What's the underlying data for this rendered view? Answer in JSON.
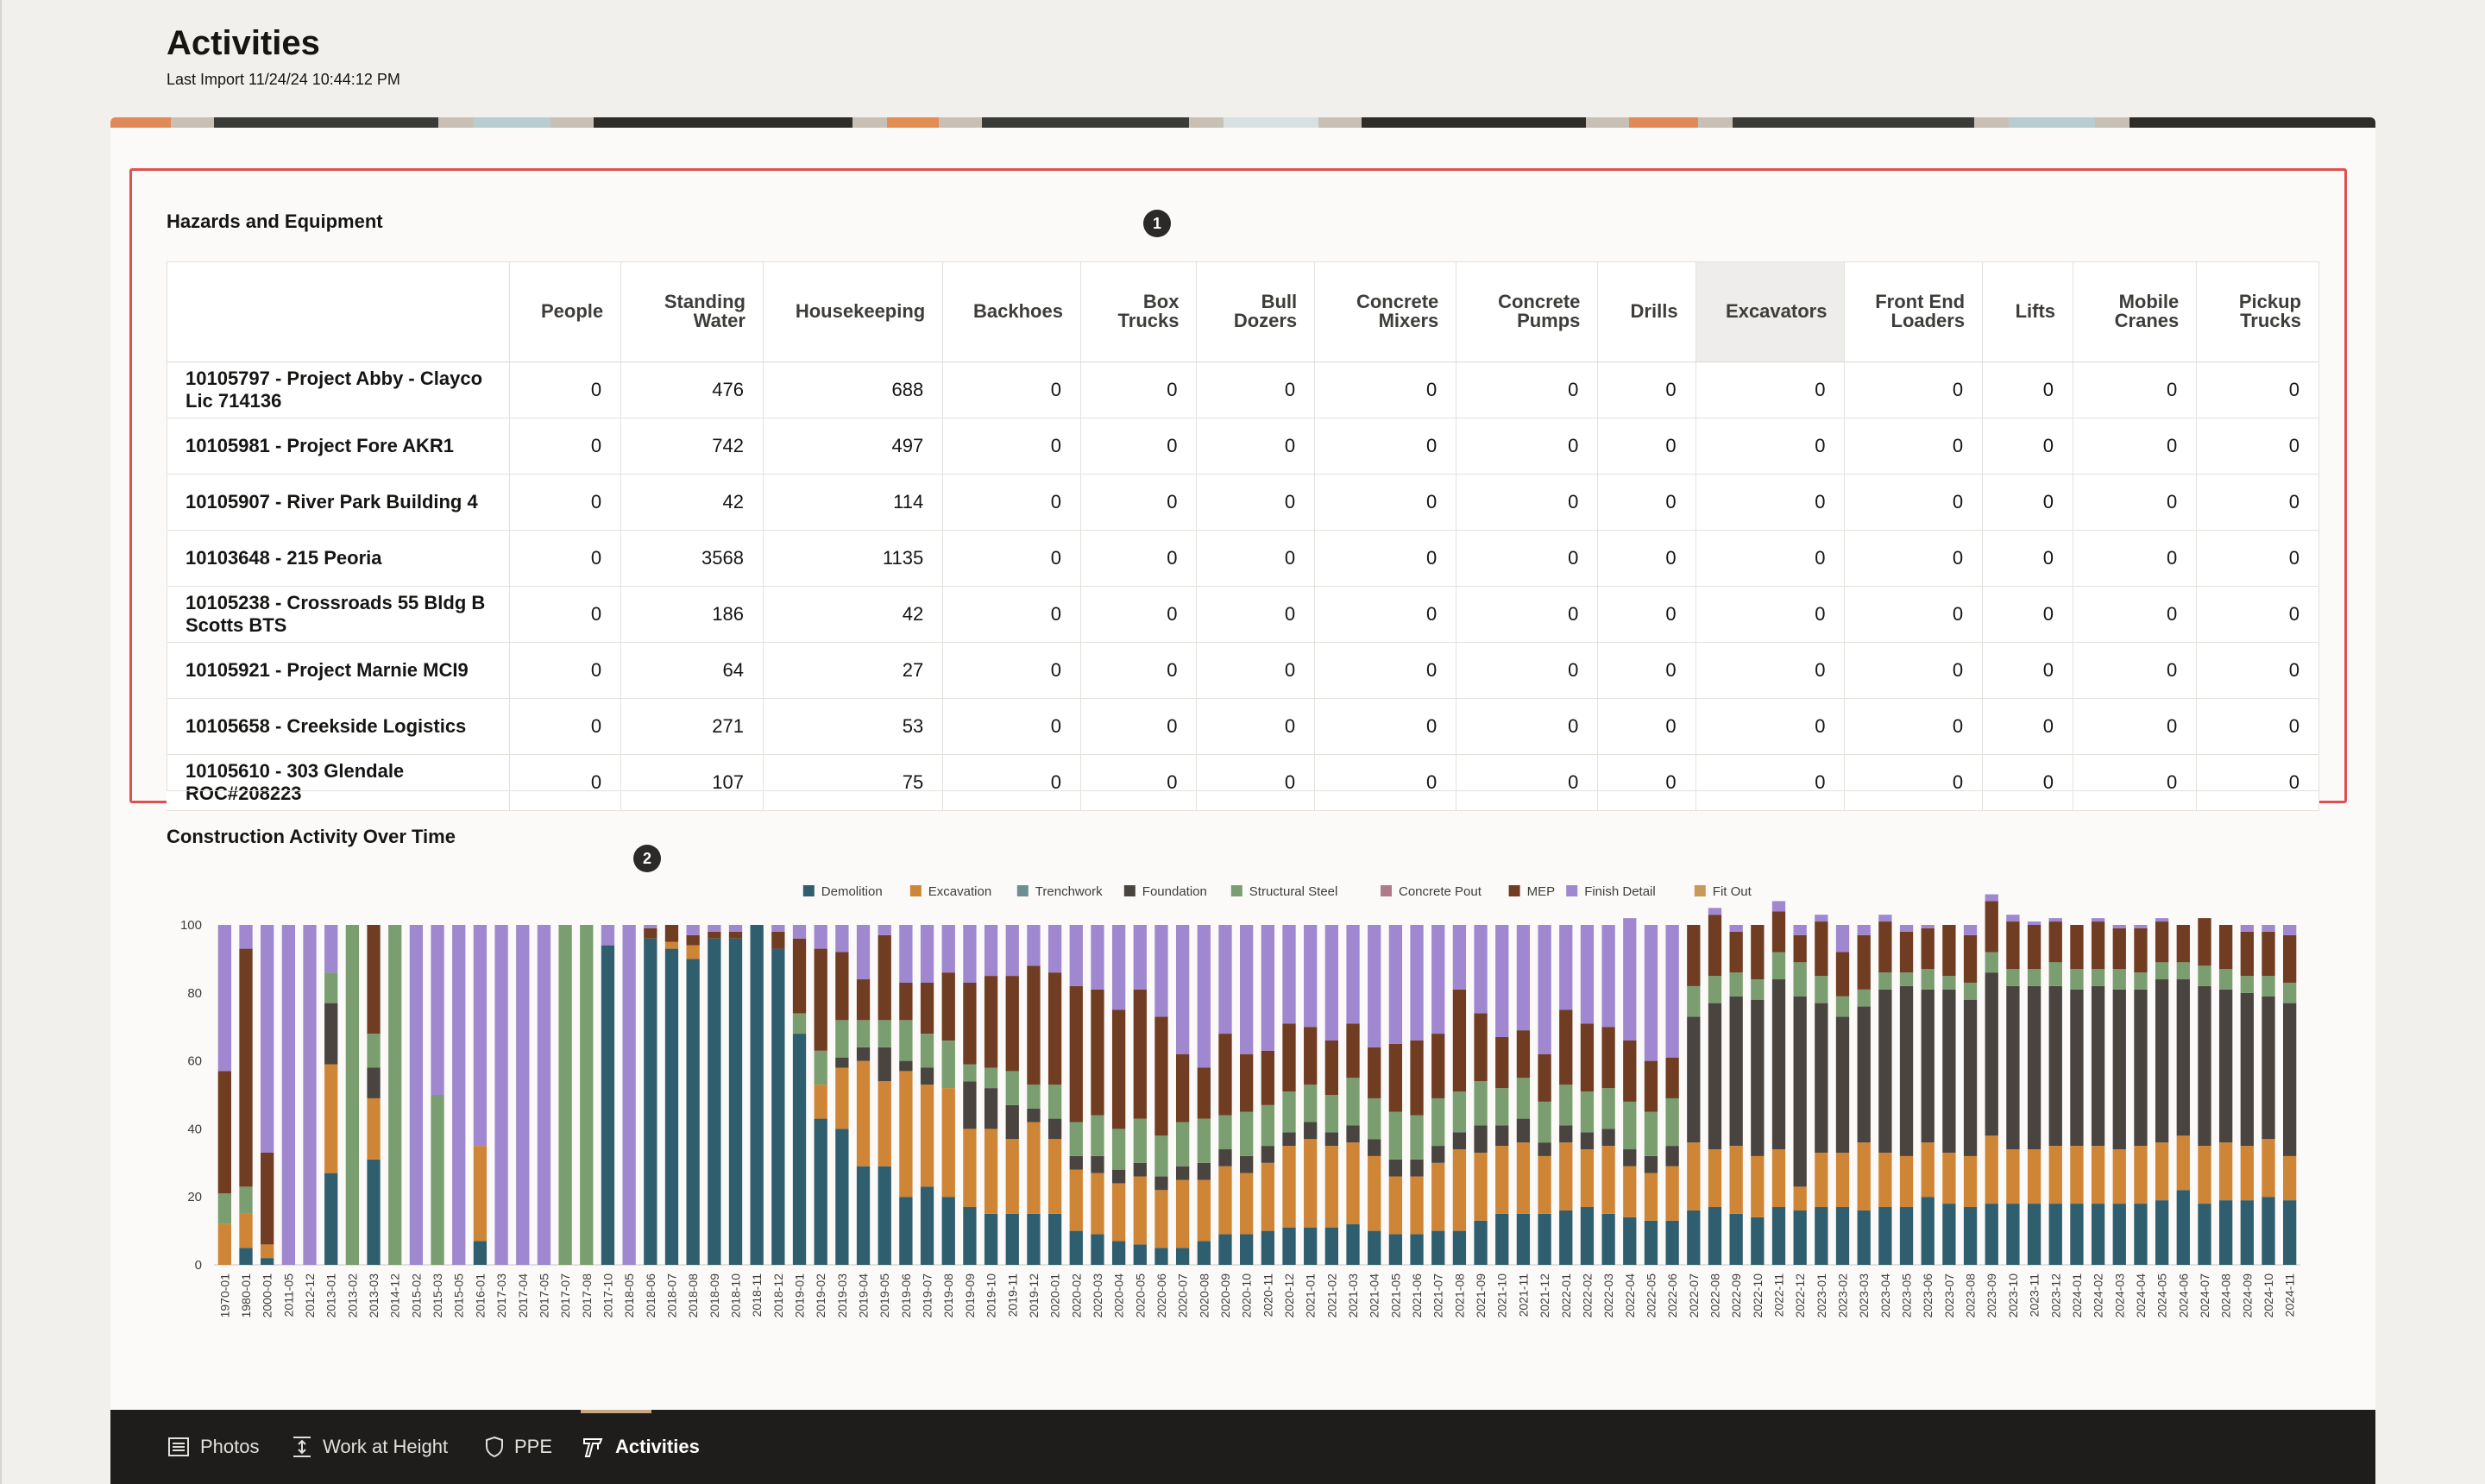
{
  "page": {
    "title": "Activities",
    "last_import": "Last Import 11/24/24 10:44:12 PM"
  },
  "hazards": {
    "title": "Hazards and Equipment",
    "callout": "1",
    "columns": [
      "People",
      "Standing Water",
      "Housekeeping",
      "Backhoes",
      "Box Trucks",
      "Bull Dozers",
      "Concrete Mixers",
      "Concrete Pumps",
      "Drills",
      "Excavators",
      "Front End Loaders",
      "Lifts",
      "Mobile Cranes",
      "Pickup Trucks"
    ],
    "rows": [
      {
        "project": "10105797 - Project Abby - Clayco Lic 714136",
        "values": [
          0,
          476,
          688,
          0,
          0,
          0,
          0,
          0,
          0,
          0,
          0,
          0,
          0,
          0
        ]
      },
      {
        "project": "10105981 - Project Fore AKR1",
        "values": [
          0,
          742,
          497,
          0,
          0,
          0,
          0,
          0,
          0,
          0,
          0,
          0,
          0,
          0
        ]
      },
      {
        "project": "10105907 - River Park Building 4",
        "values": [
          0,
          42,
          114,
          0,
          0,
          0,
          0,
          0,
          0,
          0,
          0,
          0,
          0,
          0
        ]
      },
      {
        "project": "10103648 - 215 Peoria",
        "values": [
          0,
          3568,
          1135,
          0,
          0,
          0,
          0,
          0,
          0,
          0,
          0,
          0,
          0,
          0
        ]
      },
      {
        "project": "10105238 - Crossroads 55 Bldg B Scotts BTS",
        "values": [
          0,
          186,
          42,
          0,
          0,
          0,
          0,
          0,
          0,
          0,
          0,
          0,
          0,
          0
        ]
      },
      {
        "project": "10105921 - Project Marnie MCI9",
        "values": [
          0,
          64,
          27,
          0,
          0,
          0,
          0,
          0,
          0,
          0,
          0,
          0,
          0,
          0
        ]
      },
      {
        "project": "10105658 - Creekside Logistics",
        "values": [
          0,
          271,
          53,
          0,
          0,
          0,
          0,
          0,
          0,
          0,
          0,
          0,
          0,
          0
        ]
      },
      {
        "project": "10105610 - 303 Glendale ROC#208223",
        "values": [
          0,
          107,
          75,
          0,
          0,
          0,
          0,
          0,
          0,
          0,
          0,
          0,
          0,
          0
        ]
      }
    ]
  },
  "activity": {
    "callout": "2"
  },
  "chart_data": {
    "type": "bar",
    "stacked": true,
    "title": "Construction Activity Over Time",
    "xlabel": "",
    "ylabel": "",
    "ylim": [
      0,
      100
    ],
    "yticks": [
      0,
      20,
      40,
      60,
      80,
      100
    ],
    "legend_position": "top",
    "grid": false,
    "categories": [
      "1970-01",
      "1980-01",
      "2000-01",
      "2011-05",
      "2012-12",
      "2013-01",
      "2013-02",
      "2013-03",
      "2014-12",
      "2015-02",
      "2015-03",
      "2015-05",
      "2016-01",
      "2017-03",
      "2017-04",
      "2017-05",
      "2017-07",
      "2017-08",
      "2017-10",
      "2018-05",
      "2018-06",
      "2018-07",
      "2018-08",
      "2018-09",
      "2018-10",
      "2018-11",
      "2018-12",
      "2019-01",
      "2019-02",
      "2019-03",
      "2019-04",
      "2019-05",
      "2019-06",
      "2019-07",
      "2019-08",
      "2019-09",
      "2019-10",
      "2019-11",
      "2019-12",
      "2020-01",
      "2020-02",
      "2020-03",
      "2020-04",
      "2020-05",
      "2020-06",
      "2020-07",
      "2020-08",
      "2020-09",
      "2020-10",
      "2020-11",
      "2020-12",
      "2021-01",
      "2021-02",
      "2021-03",
      "2021-04",
      "2021-05",
      "2021-06",
      "2021-07",
      "2021-08",
      "2021-09",
      "2021-10",
      "2021-11",
      "2021-12",
      "2022-01",
      "2022-02",
      "2022-03",
      "2022-04",
      "2022-05",
      "2022-06",
      "2022-07",
      "2022-08",
      "2022-09",
      "2022-10",
      "2022-11",
      "2022-12",
      "2023-01",
      "2023-02",
      "2023-03",
      "2023-04",
      "2023-05",
      "2023-06",
      "2023-07",
      "2023-08",
      "2023-09",
      "2023-10",
      "2023-11",
      "2023-12",
      "2024-01",
      "2024-02",
      "2024-03",
      "2024-04",
      "2024-05",
      "2024-06",
      "2024-07",
      "2024-08",
      "2024-09",
      "2024-10",
      "2024-11"
    ],
    "series": [
      {
        "name": "Demolition",
        "color": "#2f5f6e",
        "values": [
          0,
          5,
          2,
          0,
          0,
          27,
          0,
          31,
          0,
          0,
          0,
          0,
          7,
          0,
          0,
          0,
          0,
          0,
          94,
          0,
          96,
          93,
          90,
          96,
          96,
          100,
          93,
          68,
          43,
          40,
          29,
          29,
          20,
          23,
          20,
          17,
          15,
          15,
          15,
          15,
          10,
          9,
          7,
          6,
          5,
          5,
          7,
          9,
          9,
          10,
          11,
          11,
          11,
          12,
          10,
          9,
          9,
          10,
          10,
          13,
          15,
          15,
          15,
          16,
          17,
          15,
          14,
          13,
          13,
          16,
          17,
          15,
          14,
          17,
          16,
          17,
          17,
          16,
          17,
          17,
          20,
          18,
          17,
          18,
          18,
          18,
          18,
          18,
          18,
          18,
          18,
          19,
          22,
          18,
          19,
          19,
          20,
          19
        ]
      },
      {
        "name": "Excavation",
        "color": "#cf8536",
        "values": [
          12,
          10,
          4,
          0,
          0,
          32,
          0,
          18,
          0,
          0,
          0,
          0,
          28,
          0,
          0,
          0,
          0,
          0,
          0,
          0,
          0,
          2,
          4,
          0,
          0,
          0,
          0,
          0,
          10,
          18,
          31,
          25,
          37,
          30,
          32,
          23,
          25,
          22,
          27,
          22,
          18,
          18,
          17,
          20,
          17,
          20,
          18,
          20,
          18,
          20,
          24,
          26,
          24,
          24,
          22,
          17,
          17,
          20,
          24,
          20,
          20,
          21,
          17,
          20,
          17,
          20,
          15,
          14,
          16,
          20,
          17,
          20,
          18,
          17,
          7,
          16,
          16,
          20,
          16,
          15,
          16,
          15,
          15,
          20,
          16,
          16,
          17,
          17,
          17,
          16,
          17,
          17,
          16,
          17,
          17,
          16,
          17,
          13
        ]
      },
      {
        "name": "Trenchwork",
        "color": "#6e8f91",
        "values": [
          0,
          0,
          0,
          0,
          0,
          0,
          0,
          0,
          0,
          0,
          0,
          0,
          0,
          0,
          0,
          0,
          0,
          0,
          0,
          0,
          0,
          0,
          0,
          0,
          0,
          0,
          0,
          0,
          0,
          0,
          0,
          0,
          0,
          0,
          0,
          0,
          0,
          0,
          0,
          0,
          0,
          0,
          0,
          0,
          0,
          0,
          0,
          0,
          0,
          0,
          0,
          0,
          0,
          0,
          0,
          0,
          0,
          0,
          0,
          0,
          0,
          0,
          0,
          0,
          0,
          0,
          0,
          0,
          0,
          0,
          0,
          0,
          0,
          0,
          0,
          0,
          0,
          0,
          0,
          0,
          0,
          0,
          0,
          0,
          0,
          0,
          0,
          0,
          0,
          0,
          0,
          0,
          0,
          0,
          0,
          0,
          0,
          0
        ]
      },
      {
        "name": "Foundation",
        "color": "#4a4440",
        "values": [
          0,
          0,
          0,
          0,
          0,
          18,
          0,
          9,
          0,
          0,
          0,
          0,
          0,
          0,
          0,
          0,
          0,
          0,
          0,
          0,
          0,
          0,
          0,
          0,
          0,
          0,
          0,
          0,
          0,
          3,
          4,
          10,
          3,
          5,
          0,
          14,
          12,
          10,
          4,
          6,
          4,
          5,
          4,
          4,
          4,
          4,
          5,
          5,
          5,
          5,
          4,
          5,
          4,
          5,
          5,
          5,
          5,
          5,
          5,
          8,
          6,
          7,
          4,
          5,
          5,
          5,
          5,
          5,
          6,
          37,
          43,
          44,
          46,
          50,
          56,
          44,
          40,
          40,
          48,
          50,
          45,
          48,
          46,
          48,
          48,
          48,
          47,
          46,
          47,
          47,
          46,
          48,
          46,
          47,
          45,
          45,
          42,
          45
        ]
      },
      {
        "name": "Structural Steel",
        "color": "#7a9e6f",
        "values": [
          9,
          8,
          0,
          0,
          0,
          9,
          100,
          10,
          100,
          0,
          50,
          0,
          0,
          0,
          0,
          0,
          100,
          100,
          0,
          0,
          0,
          0,
          0,
          0,
          0,
          0,
          0,
          6,
          10,
          11,
          8,
          8,
          12,
          10,
          14,
          5,
          6,
          10,
          7,
          10,
          10,
          12,
          12,
          13,
          12,
          13,
          13,
          10,
          13,
          12,
          12,
          11,
          11,
          14,
          12,
          14,
          13,
          14,
          12,
          13,
          11,
          12,
          12,
          12,
          12,
          12,
          14,
          13,
          14,
          9,
          8,
          7,
          6,
          8,
          10,
          8,
          6,
          5,
          5,
          4,
          6,
          4,
          5,
          6,
          5,
          5,
          7,
          6,
          5,
          6,
          5,
          5,
          5,
          6,
          6,
          5,
          6,
          6
        ]
      },
      {
        "name": "Concrete Pout",
        "color": "#b07a8c",
        "values": [
          0,
          0,
          0,
          0,
          0,
          0,
          0,
          0,
          0,
          0,
          0,
          0,
          0,
          0,
          0,
          0,
          0,
          0,
          0,
          0,
          0,
          0,
          0,
          0,
          0,
          0,
          0,
          0,
          0,
          0,
          0,
          0,
          0,
          0,
          0,
          0,
          0,
          0,
          0,
          0,
          0,
          0,
          0,
          0,
          0,
          0,
          0,
          0,
          0,
          0,
          0,
          0,
          0,
          0,
          0,
          0,
          0,
          0,
          0,
          0,
          0,
          0,
          0,
          0,
          0,
          0,
          0,
          0,
          0,
          0,
          0,
          0,
          0,
          0,
          0,
          0,
          0,
          0,
          0,
          0,
          0,
          0,
          0,
          0,
          0,
          0,
          0,
          0,
          0,
          0,
          0,
          0,
          0,
          0,
          0,
          0,
          0,
          0
        ]
      },
      {
        "name": "MEP",
        "color": "#703c22",
        "values": [
          36,
          70,
          27,
          0,
          0,
          0,
          0,
          32,
          0,
          0,
          0,
          0,
          0,
          0,
          0,
          0,
          0,
          0,
          0,
          0,
          3,
          5,
          3,
          2,
          2,
          0,
          5,
          22,
          30,
          20,
          12,
          25,
          11,
          15,
          20,
          24,
          27,
          28,
          35,
          33,
          40,
          37,
          35,
          38,
          35,
          20,
          15,
          24,
          17,
          16,
          20,
          17,
          16,
          16,
          15,
          20,
          22,
          19,
          30,
          20,
          15,
          14,
          14,
          22,
          20,
          18,
          18,
          15,
          12,
          18,
          18,
          12,
          16,
          12,
          8,
          16,
          13,
          16,
          15,
          12,
          12,
          15,
          14,
          15,
          14,
          13,
          12,
          13,
          14,
          12,
          13,
          12,
          11,
          14,
          13,
          13,
          13,
          14
        ]
      },
      {
        "name": "Finish Detail",
        "color": "#9f88cf",
        "values": [
          43,
          7,
          67,
          100,
          100,
          14,
          0,
          0,
          0,
          100,
          50,
          100,
          65,
          100,
          100,
          100,
          0,
          0,
          6,
          100,
          1,
          0,
          3,
          2,
          2,
          0,
          2,
          4,
          7,
          8,
          16,
          3,
          17,
          17,
          14,
          17,
          15,
          15,
          12,
          14,
          18,
          19,
          25,
          19,
          27,
          38,
          42,
          32,
          38,
          37,
          29,
          30,
          34,
          29,
          36,
          35,
          34,
          32,
          19,
          26,
          33,
          31,
          38,
          25,
          29,
          30,
          36,
          40,
          39,
          0,
          2,
          2,
          0,
          3,
          3,
          2,
          8,
          3,
          2,
          2,
          1,
          0,
          3,
          2,
          2,
          1,
          1,
          0,
          1,
          1,
          1,
          1,
          0,
          0,
          0,
          2,
          2,
          3
        ]
      },
      {
        "name": "Fit Out",
        "color": "#c89a55",
        "values": [
          0,
          0,
          0,
          0,
          0,
          0,
          0,
          0,
          0,
          0,
          0,
          0,
          0,
          0,
          0,
          0,
          0,
          0,
          0,
          0,
          0,
          0,
          0,
          0,
          0,
          0,
          0,
          0,
          0,
          0,
          0,
          0,
          0,
          0,
          0,
          0,
          0,
          0,
          0,
          0,
          0,
          0,
          0,
          0,
          0,
          0,
          0,
          0,
          0,
          0,
          0,
          0,
          0,
          0,
          0,
          0,
          0,
          0,
          0,
          0,
          0,
          0,
          0,
          0,
          0,
          0,
          0,
          0,
          0,
          0,
          0,
          0,
          0,
          0,
          0,
          0,
          0,
          0,
          0,
          0,
          0,
          0,
          0,
          0,
          0,
          0,
          0,
          0,
          0,
          0,
          0,
          0,
          0,
          0,
          0,
          0,
          0,
          0
        ]
      }
    ]
  },
  "footer": {
    "tabs": [
      {
        "label": "Photos",
        "icon": "photos-icon"
      },
      {
        "label": "Work at Height",
        "icon": "work-at-height-icon"
      },
      {
        "label": "PPE",
        "icon": "ppe-shield-icon"
      },
      {
        "label": "Activities",
        "icon": "activities-icon",
        "active": true
      }
    ]
  }
}
